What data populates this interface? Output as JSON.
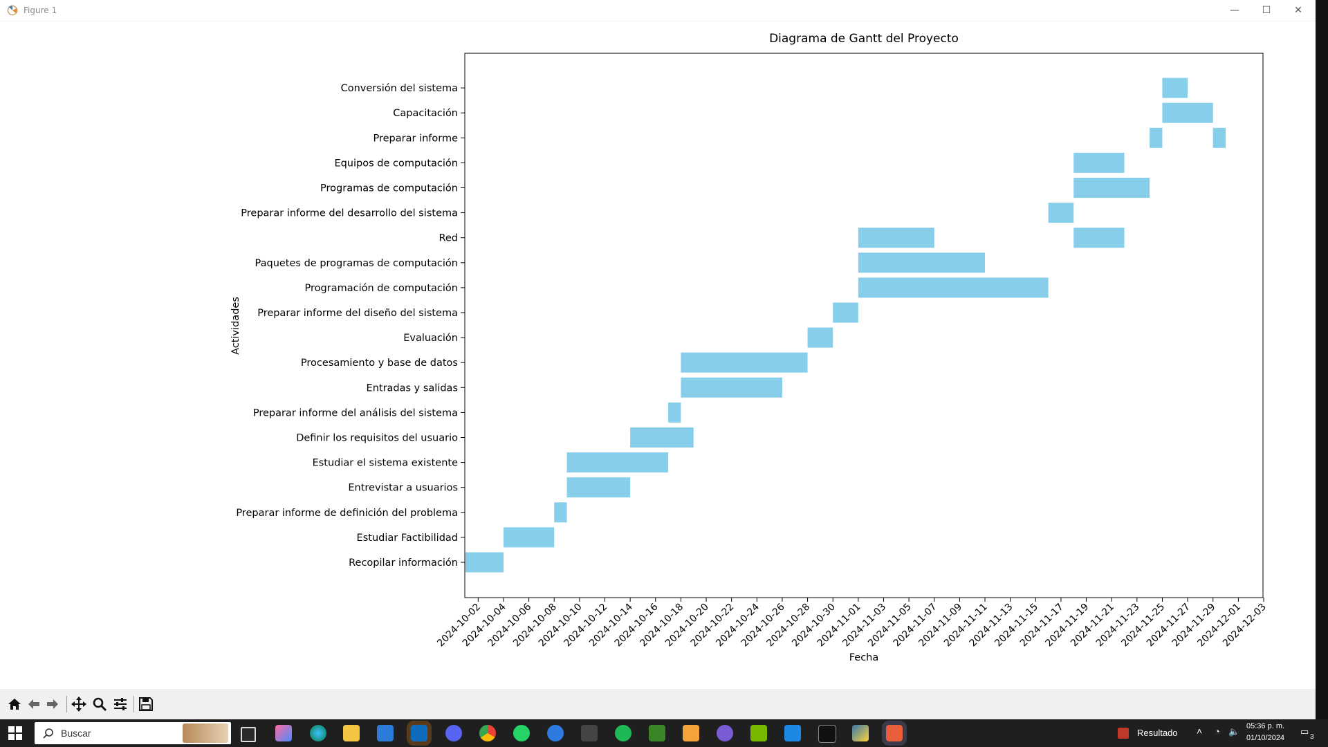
{
  "window": {
    "title": "Figure 1",
    "buttons": {
      "minimize": "—",
      "maximize": "☐",
      "close": "✕"
    }
  },
  "chart_data": {
    "type": "gantt",
    "title": "Diagrama de Gantt del Proyecto",
    "xlabel": "Fecha",
    "ylabel": "Actividades",
    "x_start": "2024-10-01",
    "xlim_days": [
      0.0,
      63.0
    ],
    "bar_color": "#87CEEB",
    "x_ticks": [
      "2024-10-02",
      "2024-10-04",
      "2024-10-06",
      "2024-10-08",
      "2024-10-10",
      "2024-10-12",
      "2024-10-14",
      "2024-10-16",
      "2024-10-18",
      "2024-10-20",
      "2024-10-22",
      "2024-10-24",
      "2024-10-26",
      "2024-10-28",
      "2024-10-30",
      "2024-11-01",
      "2024-11-03",
      "2024-11-05",
      "2024-11-07",
      "2024-11-09",
      "2024-11-11",
      "2024-11-13",
      "2024-11-15",
      "2024-11-17",
      "2024-11-19",
      "2024-11-21",
      "2024-11-23",
      "2024-11-25",
      "2024-11-27",
      "2024-11-29",
      "2024-12-01",
      "2024-12-03"
    ],
    "x_tick_days": [
      1,
      3,
      5,
      7,
      9,
      11,
      13,
      15,
      17,
      19,
      21,
      23,
      25,
      27,
      29,
      31,
      33,
      35,
      37,
      39,
      41,
      43,
      45,
      47,
      49,
      51,
      53,
      55,
      57,
      59,
      61,
      63
    ],
    "activities": [
      {
        "name": "Recopilar información",
        "start": "2024-10-01",
        "end": "2024-10-04"
      },
      {
        "name": "Estudiar Factibilidad",
        "start": "2024-10-04",
        "end": "2024-10-08"
      },
      {
        "name": "Preparar informe de definición del problema",
        "start": "2024-10-08",
        "end": "2024-10-09"
      },
      {
        "name": "Entrevistar a usuarios",
        "start": "2024-10-09",
        "end": "2024-10-14"
      },
      {
        "name": "Estudiar el sistema existente",
        "start": "2024-10-09",
        "end": "2024-10-17"
      },
      {
        "name": "Definir los requisitos del usuario",
        "start": "2024-10-14",
        "end": "2024-10-19"
      },
      {
        "name": "Preparar informe del análisis del sistema",
        "start": "2024-10-17",
        "end": "2024-10-18"
      },
      {
        "name": "Entradas y salidas",
        "start": "2024-10-18",
        "end": "2024-10-26"
      },
      {
        "name": "Procesamiento y base de datos",
        "start": "2024-10-18",
        "end": "2024-10-28"
      },
      {
        "name": "Evaluación",
        "start": "2024-10-28",
        "end": "2024-10-30"
      },
      {
        "name": "Preparar informe del diseño del sistema",
        "start": "2024-10-30",
        "end": "2024-11-01"
      },
      {
        "name": "Programación de computación",
        "start": "2024-11-01",
        "end": "2024-11-16"
      },
      {
        "name": "Paquetes de programas de computación",
        "start": "2024-11-01",
        "end": "2024-11-11"
      },
      {
        "name": "Red",
        "start": "2024-11-01",
        "end": "2024-11-07",
        "extra": {
          "start": "2024-11-18",
          "end": "2024-11-22"
        }
      },
      {
        "name": "Preparar informe del desarrollo del sistema",
        "start": "2024-11-16",
        "end": "2024-11-18"
      },
      {
        "name": "Programas de computación",
        "start": "2024-11-18",
        "end": "2024-11-24"
      },
      {
        "name": "Equipos de computación",
        "start": "2024-11-18",
        "end": "2024-11-22"
      },
      {
        "name": "Preparar informe",
        "start": "2024-11-24",
        "end": "2024-11-25",
        "extra": {
          "start": "2024-11-29",
          "end": "2024-11-30"
        }
      },
      {
        "name": "Capacitación",
        "start": "2024-11-25",
        "end": "2024-11-29"
      },
      {
        "name": "Conversión del sistema",
        "start": "2024-11-25",
        "end": "2024-11-27"
      }
    ]
  },
  "toolbar": {
    "buttons": [
      "home-icon",
      "back-arrow-icon",
      "forward-arrow-icon",
      "pan-icon",
      "zoom-icon",
      "configure-subplots-icon",
      "save-icon"
    ]
  },
  "taskbar": {
    "search_placeholder": "Buscar",
    "weather_label": "Resultado",
    "time": "05:36 p. m.",
    "date": "01/10/2024",
    "notification_count": "3"
  }
}
